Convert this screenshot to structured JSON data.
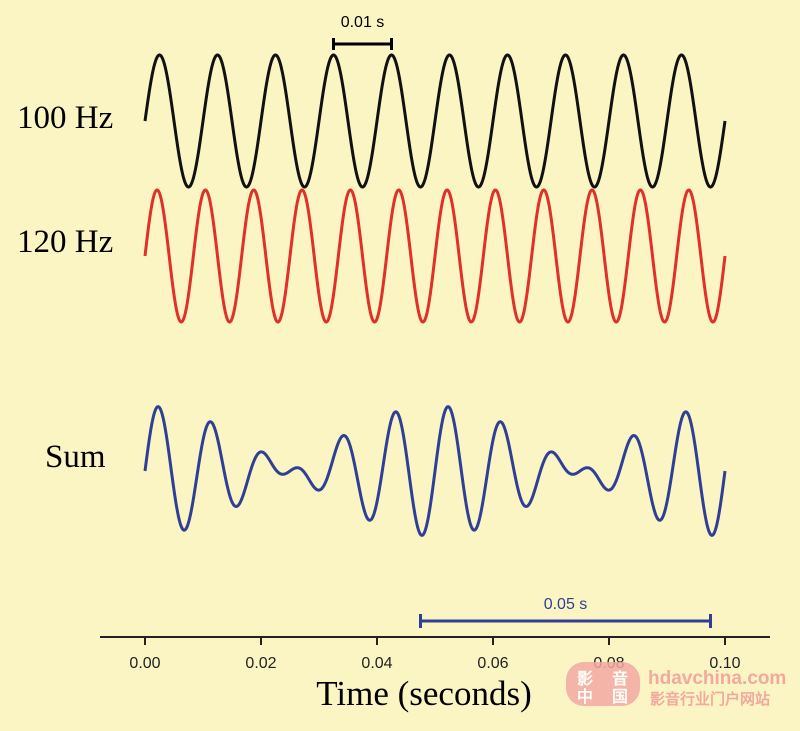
{
  "chart_data": {
    "type": "line",
    "xlabel": "Time (seconds)",
    "xlim": [
      0,
      0.1
    ],
    "x_ticks": [
      "0.00",
      "0.02",
      "0.04",
      "0.06",
      "0.08",
      "0.10"
    ],
    "series": [
      {
        "name": "100 Hz",
        "frequency_hz": 100,
        "phase": "sine",
        "color": "#111111"
      },
      {
        "name": "120 Hz",
        "frequency_hz": 120,
        "phase": "sine",
        "color": "#e0302a"
      },
      {
        "name": "Sum",
        "components_hz": [
          100,
          120
        ],
        "color": "#2e3f95"
      }
    ],
    "annotations": [
      {
        "label": "0.01 s",
        "from": 0.0325,
        "to": 0.0425,
        "attached_to": "100 Hz",
        "color": "#000000"
      },
      {
        "label": "0.05 s",
        "from": 0.0475,
        "to": 0.0975,
        "attached_to": "Sum",
        "color": "#2e3f95"
      }
    ]
  },
  "watermark": {
    "logo_chars": [
      "影",
      "音",
      "中",
      "国"
    ],
    "site": "hdavchina.com",
    "tagline": "影音行业门户网站"
  }
}
